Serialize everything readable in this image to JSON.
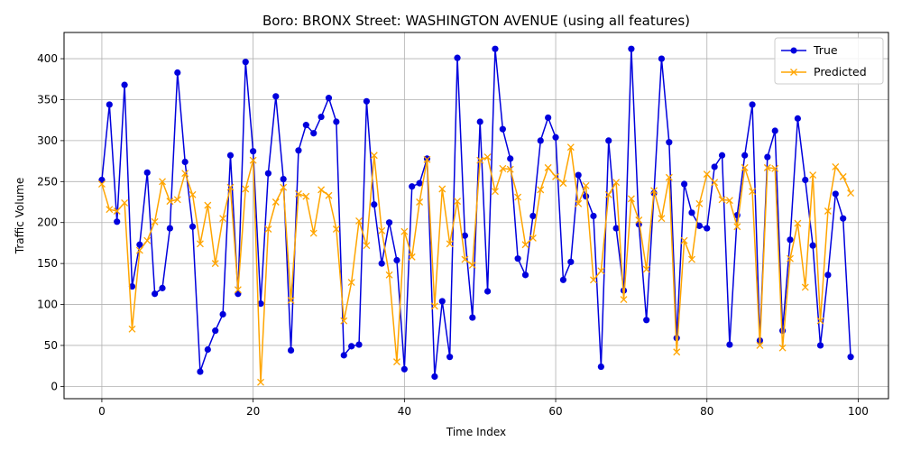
{
  "chart_data": {
    "type": "line",
    "title": "Boro: BRONX Street: WASHINGTON AVENUE (using all features)",
    "xlabel": "Time Index",
    "ylabel": "Traffic Volume",
    "xlim": [
      -5,
      104
    ],
    "ylim": [
      -15,
      432
    ],
    "xticks": [
      0,
      20,
      40,
      60,
      80,
      100
    ],
    "yticks": [
      0,
      50,
      100,
      150,
      200,
      250,
      300,
      350,
      400
    ],
    "grid": true,
    "legend_position": "top-right",
    "x": [
      0,
      1,
      2,
      3,
      4,
      5,
      6,
      7,
      8,
      9,
      10,
      11,
      12,
      13,
      14,
      15,
      16,
      17,
      18,
      19,
      20,
      21,
      22,
      23,
      24,
      25,
      26,
      27,
      28,
      29,
      30,
      31,
      32,
      33,
      34,
      35,
      36,
      37,
      38,
      39,
      40,
      41,
      42,
      43,
      44,
      45,
      46,
      47,
      48,
      49,
      50,
      51,
      52,
      53,
      54,
      55,
      56,
      57,
      58,
      59,
      60,
      61,
      62,
      63,
      64,
      65,
      66,
      67,
      68,
      69,
      70,
      71,
      72,
      73,
      74,
      75,
      76,
      77,
      78,
      79,
      80,
      81,
      82,
      83,
      84,
      85,
      86,
      87,
      88,
      89,
      90,
      91,
      92,
      93,
      94,
      95,
      96,
      97,
      98,
      99
    ],
    "series": [
      {
        "name": "True",
        "color": "#0000dd",
        "marker": "circle",
        "values": [
          252,
          344,
          201,
          368,
          122,
          173,
          261,
          113,
          120,
          193,
          383,
          274,
          195,
          18,
          45,
          68,
          88,
          282,
          113,
          396,
          287,
          101,
          260,
          354,
          253,
          44,
          288,
          319,
          309,
          329,
          352,
          323,
          38,
          49,
          51,
          348,
          222,
          150,
          200,
          154,
          21,
          244,
          248,
          278,
          12,
          104,
          36,
          401,
          184,
          84,
          323,
          116,
          412,
          314,
          278,
          156,
          136,
          208,
          300,
          328,
          304,
          130,
          152,
          258,
          232,
          208,
          24,
          300,
          193,
          117,
          412,
          198,
          81,
          236,
          400,
          298,
          59,
          247,
          212,
          196,
          193,
          268,
          282,
          51,
          209,
          282,
          344,
          56,
          280,
          312,
          68,
          179,
          327,
          252,
          172,
          50,
          136,
          235,
          205,
          36
        ]
      },
      {
        "name": "Predicted",
        "color": "#ffa500",
        "marker": "x",
        "values": [
          247,
          216,
          214,
          224,
          70,
          166,
          178,
          201,
          250,
          226,
          228,
          260,
          234,
          174,
          221,
          150,
          205,
          243,
          118,
          241,
          276,
          5,
          192,
          225,
          243,
          105,
          235,
          232,
          187,
          240,
          233,
          192,
          80,
          127,
          202,
          172,
          282,
          190,
          136,
          30,
          189,
          158,
          225,
          277,
          98,
          241,
          174,
          226,
          155,
          148,
          276,
          280,
          238,
          266,
          265,
          231,
          173,
          181,
          240,
          267,
          256,
          248,
          292,
          223,
          245,
          130,
          141,
          234,
          249,
          106,
          229,
          203,
          143,
          239,
          205,
          255,
          42,
          178,
          155,
          223,
          259,
          249,
          228,
          227,
          195,
          267,
          238,
          50,
          267,
          266,
          47,
          156,
          199,
          121,
          258,
          80,
          214,
          268,
          256,
          236
        ]
      }
    ]
  }
}
